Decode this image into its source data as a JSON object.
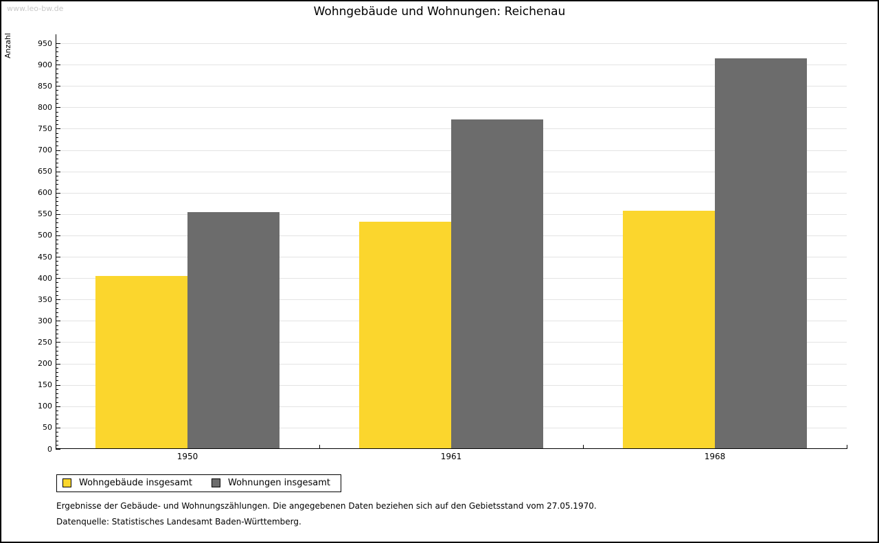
{
  "watermark": "www.leo-bw.de",
  "chart_data": {
    "type": "bar",
    "title": "Wohngebäude und Wohnungen: Reichenau",
    "ylabel": "Anzahl",
    "xlabel": "",
    "categories": [
      "1950",
      "1961",
      "1968"
    ],
    "series": [
      {
        "name": "Wohngebäude insgesamt",
        "color": "#fbd62d",
        "values": [
          405,
          532,
          558
        ]
      },
      {
        "name": "Wohnungen insgesamt",
        "color": "#6c6c6c",
        "values": [
          554,
          772,
          915
        ]
      }
    ],
    "ylim": [
      0,
      950
    ],
    "y_major_step": 50,
    "y_minor_step": 10,
    "grid": true,
    "legend_position": "bottom-left",
    "colors": {
      "grid": "#e3e3e3",
      "axis": "#000000",
      "watermark": "#c8c8c8"
    }
  },
  "footer": {
    "line1": "Ergebnisse der Gebäude- und Wohnungszählungen. Die angegebenen Daten beziehen sich auf den Gebietsstand vom 27.05.1970.",
    "line2": "Datenquelle: Statistisches Landesamt Baden-Württemberg."
  }
}
